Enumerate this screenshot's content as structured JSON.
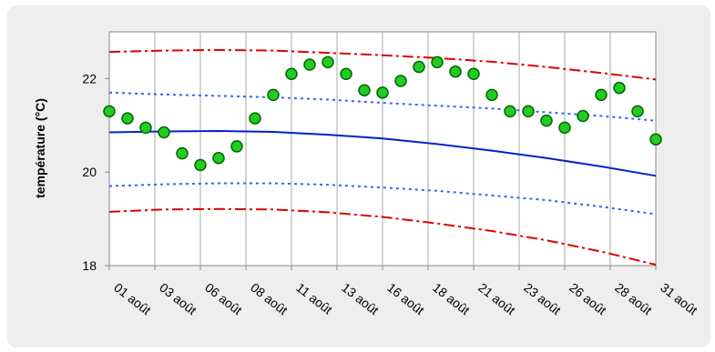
{
  "chart_data": {
    "type": "line",
    "ylabel": "température (°C)",
    "ylim": [
      18,
      23
    ],
    "yticks": [
      18,
      20,
      22
    ],
    "x_tick_labels": [
      "01 août",
      "03 août",
      "06 août",
      "08 août",
      "11 août",
      "13 août",
      "16 août",
      "18 août",
      "21 août",
      "23 août",
      "26 août",
      "28 août",
      "31 août"
    ],
    "x_tick_days": [
      1,
      3.5,
      6,
      8.5,
      11,
      13.5,
      16,
      18.5,
      21,
      23.5,
      26,
      28.5,
      31
    ],
    "xlim": [
      1,
      31
    ],
    "grid": "vertical",
    "colors": {
      "points_fill": "#22cc22",
      "points_edge": "#006600",
      "mean_line": "#0022cc",
      "inner_band": "#3366ee",
      "outer_band": "#dd0000"
    },
    "series": [
      {
        "style": "points",
        "x": [
          1,
          2,
          3,
          4,
          5,
          6,
          7,
          8,
          9,
          10,
          11,
          12,
          13,
          14,
          15,
          16,
          17,
          18,
          19,
          20,
          21,
          22,
          23,
          24,
          25,
          26,
          27,
          28,
          29,
          30,
          31
        ],
        "y": [
          21.3,
          21.15,
          20.95,
          20.85,
          20.4,
          20.15,
          20.3,
          20.55,
          21.15,
          21.65,
          22.1,
          22.3,
          22.35,
          22.1,
          21.75,
          21.7,
          21.95,
          22.25,
          22.35,
          22.15,
          22.1,
          21.65,
          21.3,
          21.3,
          21.1,
          20.95,
          21.2,
          21.65,
          21.8,
          21.3,
          20.7
        ]
      },
      {
        "style": "solid",
        "x": [
          1,
          4,
          7,
          10,
          13,
          16,
          19,
          22,
          25,
          28,
          31
        ],
        "y": [
          20.85,
          20.87,
          20.88,
          20.86,
          20.8,
          20.72,
          20.6,
          20.46,
          20.3,
          20.12,
          19.92
        ]
      },
      {
        "style": "dotted",
        "x": [
          1,
          4,
          7,
          10,
          13,
          16,
          19,
          22,
          25,
          28,
          31
        ],
        "y": [
          21.7,
          21.66,
          21.63,
          21.6,
          21.55,
          21.48,
          21.42,
          21.36,
          21.28,
          21.2,
          21.1
        ]
      },
      {
        "style": "dotted",
        "x": [
          1,
          4,
          7,
          10,
          13,
          16,
          19,
          22,
          25,
          28,
          31
        ],
        "y": [
          19.7,
          19.74,
          19.76,
          19.76,
          19.73,
          19.67,
          19.6,
          19.5,
          19.4,
          19.26,
          19.1
        ]
      },
      {
        "style": "dashdot",
        "x": [
          1,
          4,
          7,
          10,
          13,
          16,
          19,
          22,
          25,
          28,
          31
        ],
        "y": [
          22.57,
          22.6,
          22.61,
          22.6,
          22.55,
          22.5,
          22.44,
          22.36,
          22.25,
          22.12,
          21.98
        ]
      },
      {
        "style": "dashdot",
        "x": [
          1,
          4,
          7,
          10,
          13,
          16,
          19,
          22,
          25,
          28,
          31
        ],
        "y": [
          19.15,
          19.2,
          19.21,
          19.2,
          19.14,
          19.04,
          18.9,
          18.74,
          18.54,
          18.3,
          18.02
        ]
      }
    ]
  }
}
